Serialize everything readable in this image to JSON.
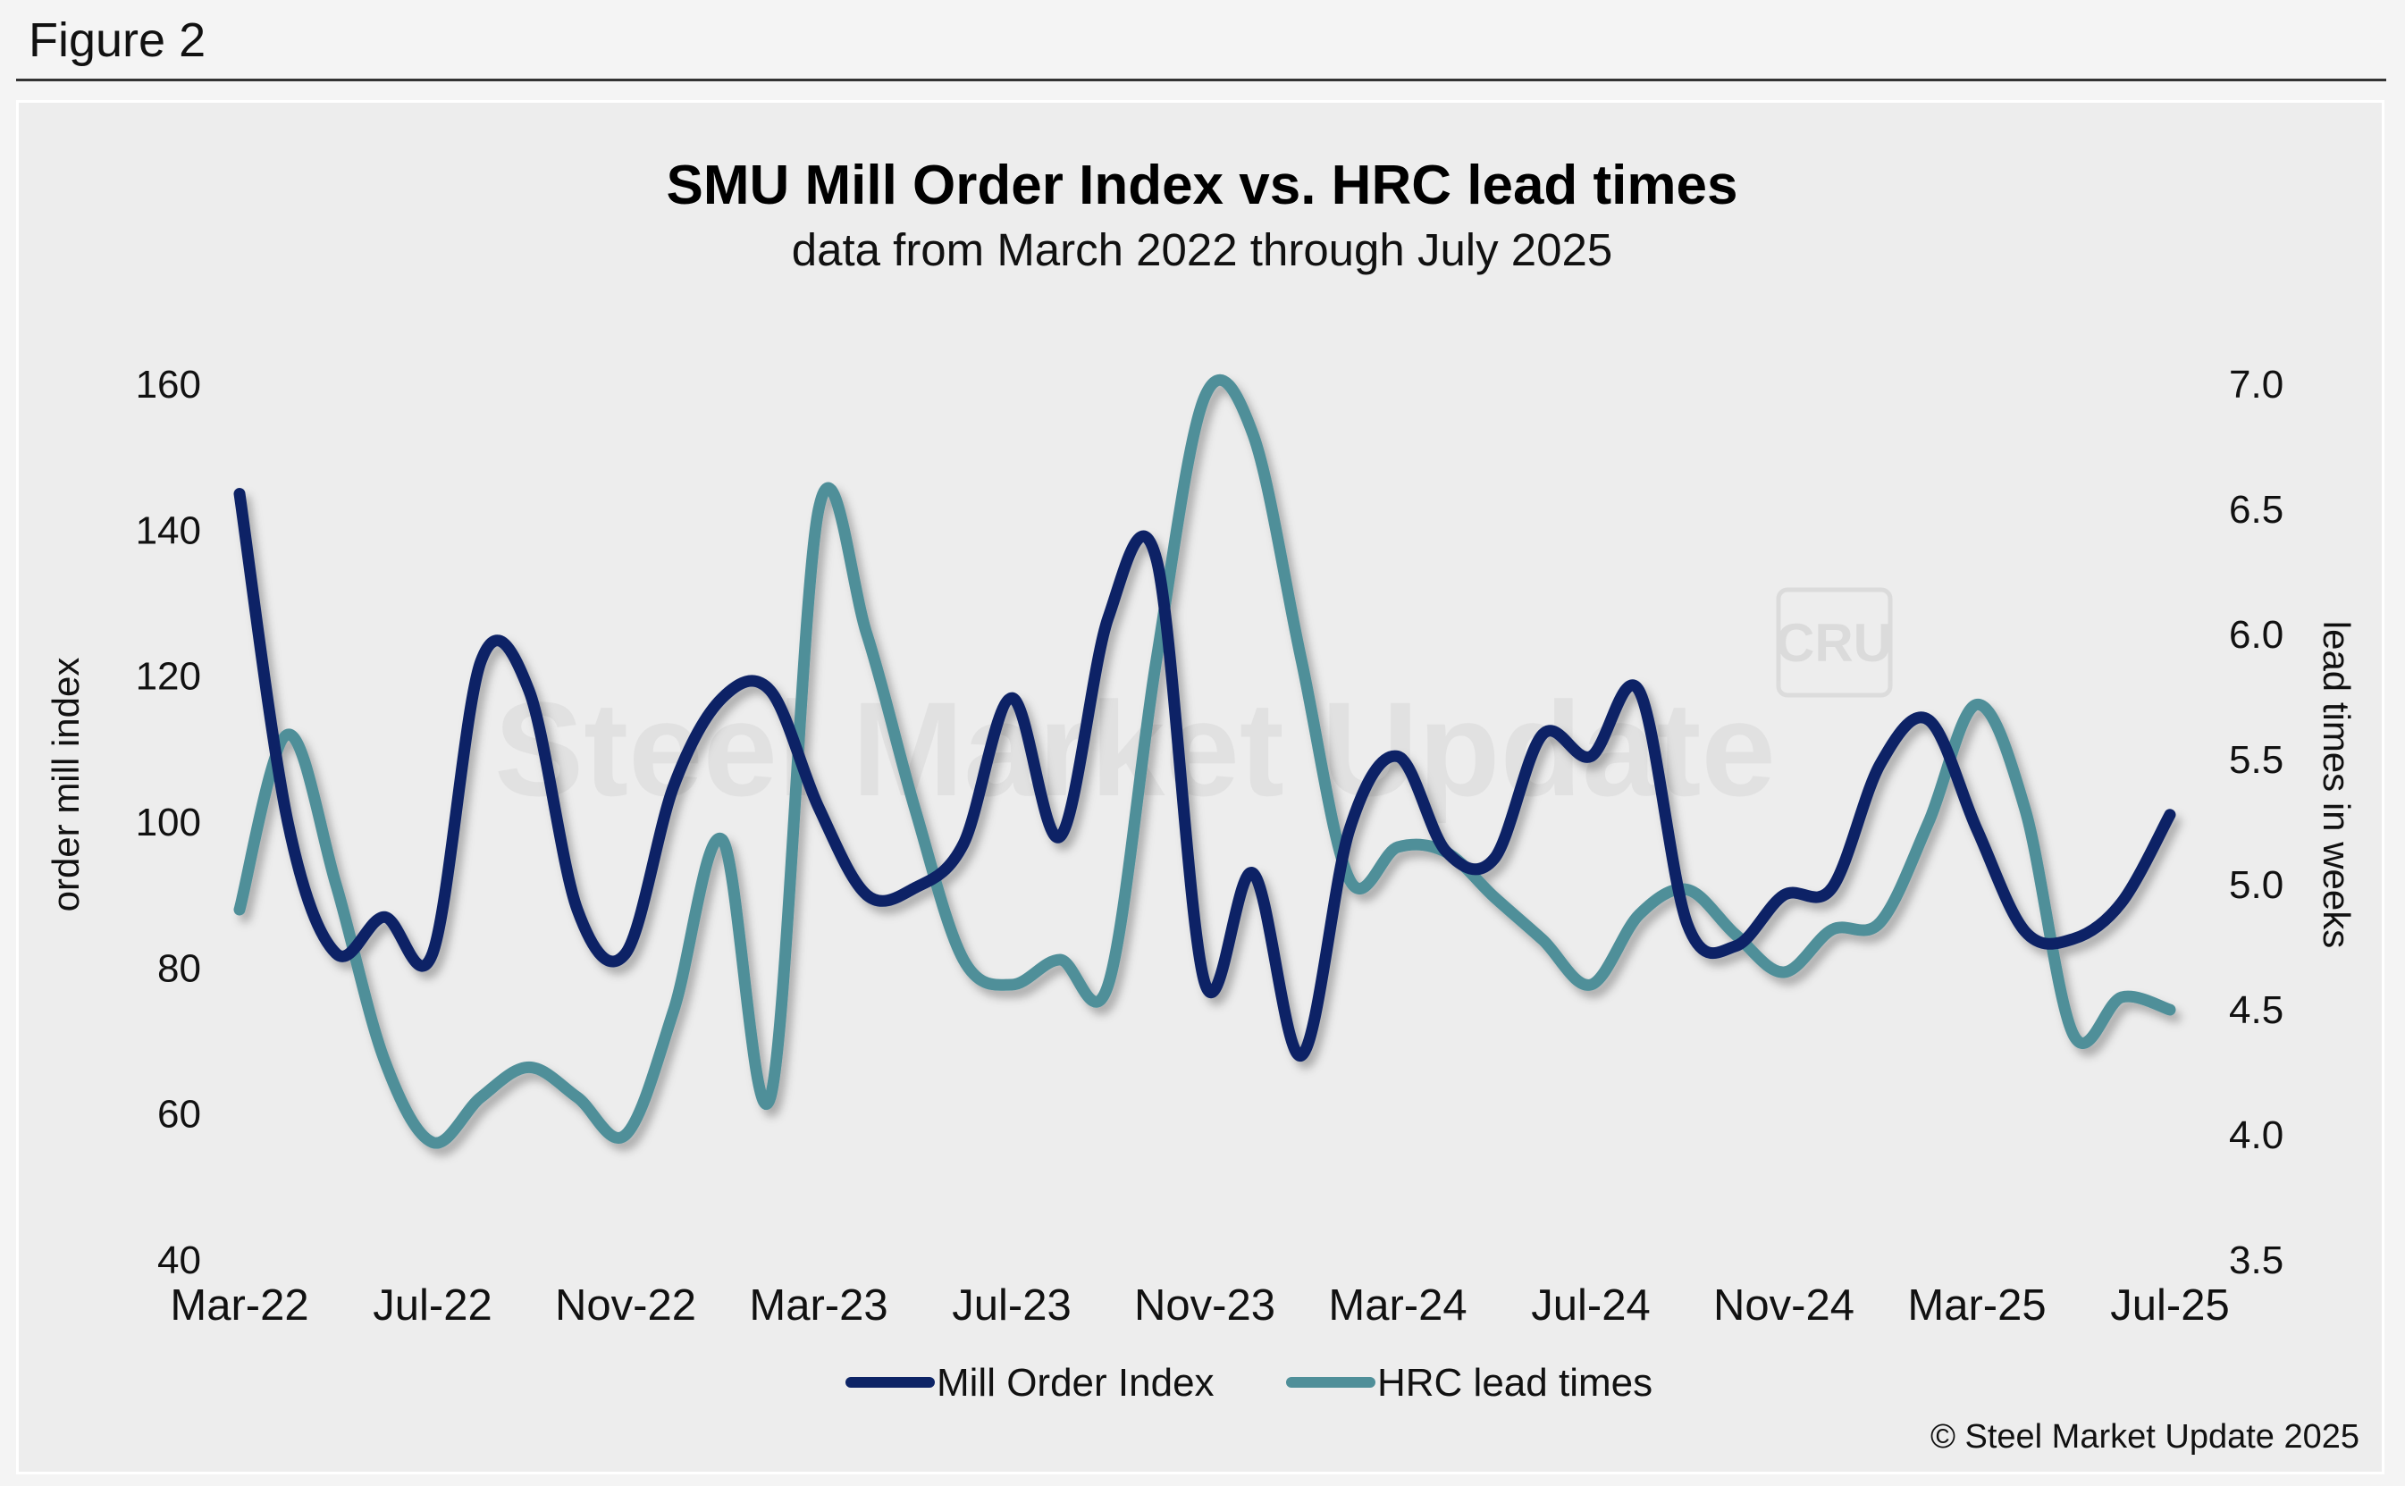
{
  "figure_label": "Figure 2",
  "credit": "© Steel Market Update 2025",
  "watermark": {
    "text": "Steel Market Update",
    "badge": "CRU"
  },
  "colors": {
    "mill_order_index": "#0d2466",
    "hrc_lead_times": "#4f8f99",
    "background": "#ededed"
  },
  "chart_data": {
    "type": "line",
    "title": "SMU Mill Order Index vs. HRC lead times",
    "subtitle": "data from March 2022 through July 2025",
    "ylabel_left": "order mill index",
    "ylabel_right": "lead times in weeks",
    "y_left": {
      "min": 40,
      "max": 160,
      "ticks": [
        "40",
        "60",
        "80",
        "100",
        "120",
        "140",
        "160"
      ]
    },
    "y_right": {
      "min": 3.5,
      "max": 7.0,
      "ticks": [
        "3.5",
        "4.0",
        "4.5",
        "5.0",
        "5.5",
        "6.0",
        "6.5",
        "7.0"
      ]
    },
    "x_tick_labels": [
      "Mar-22",
      "Jul-22",
      "Nov-22",
      "Mar-23",
      "Jul-23",
      "Nov-23",
      "Mar-24",
      "Jul-24",
      "Nov-24",
      "Mar-25",
      "Jul-25"
    ],
    "x": [
      "Mar-22",
      "Apr-22",
      "May-22",
      "Jun-22",
      "Jul-22",
      "Aug-22",
      "Sep-22",
      "Oct-22",
      "Nov-22",
      "Dec-22",
      "Jan-23",
      "Feb-23",
      "Mar-23",
      "Apr-23",
      "May-23",
      "Jun-23",
      "Jul-23",
      "Aug-23",
      "Sep-23",
      "Oct-23",
      "Nov-23",
      "Dec-23",
      "Jan-24",
      "Feb-24",
      "Mar-24",
      "Apr-24",
      "May-24",
      "Jun-24",
      "Jul-24",
      "Aug-24",
      "Sep-24",
      "Oct-24",
      "Nov-24",
      "Dec-24",
      "Jan-25",
      "Feb-25",
      "Mar-25",
      "Apr-25",
      "May-25",
      "Jun-25",
      "Jul-25"
    ],
    "legend_placement": "bottom-center",
    "grid": false,
    "series": [
      {
        "name": "Mill Order Index",
        "axis": "left",
        "values": [
          145,
          100,
          82,
          87,
          82,
          122,
          118,
          88,
          82,
          105,
          117,
          118,
          102,
          90,
          91,
          97,
          117,
          98,
          128,
          136,
          78,
          93,
          68,
          99,
          109,
          96,
          95,
          112,
          109,
          118,
          86,
          83,
          90,
          91,
          108,
          114,
          99,
          85,
          84,
          89,
          101
        ]
      },
      {
        "name": "HRC lead times",
        "axis": "right",
        "values": [
          4.9,
          5.6,
          5.0,
          4.3,
          3.97,
          4.15,
          4.27,
          4.15,
          4.0,
          4.5,
          5.18,
          4.15,
          6.5,
          6.0,
          5.3,
          4.7,
          4.6,
          4.7,
          4.6,
          5.9,
          6.95,
          6.8,
          5.9,
          5.02,
          5.15,
          5.13,
          4.95,
          4.78,
          4.6,
          4.88,
          4.98,
          4.8,
          4.65,
          4.82,
          4.85,
          5.25,
          5.72,
          5.3,
          4.4,
          4.55,
          4.5
        ]
      }
    ]
  }
}
